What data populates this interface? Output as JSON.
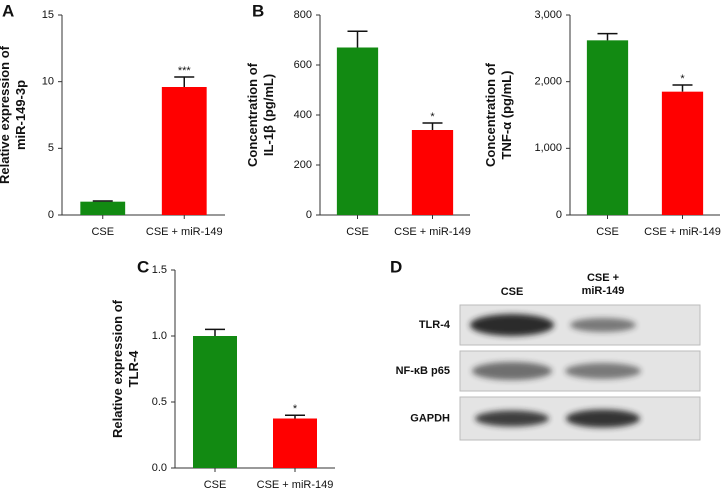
{
  "chart_data": [
    {
      "type": "bar",
      "panel": "A",
      "ylabel": [
        "Relative expression of",
        "miR-149-3p"
      ],
      "categories": [
        "CSE",
        "CSE + miR-149"
      ],
      "values": [
        1.0,
        9.6
      ],
      "errors": [
        0.05,
        0.75
      ],
      "colors": [
        "#128a12",
        "#ff0000"
      ],
      "value_annotations": [
        null,
        "***"
      ],
      "ylim": [
        0,
        15
      ],
      "yticks": [
        0,
        5,
        10,
        15
      ]
    },
    {
      "type": "bar",
      "panel": "B",
      "ylabel": [
        "Concentration of",
        "IL-1β (pg/mL)"
      ],
      "categories": [
        "CSE",
        "CSE + miR-149"
      ],
      "values": [
        670,
        340
      ],
      "errors": [
        65,
        28
      ],
      "colors": [
        "#128a12",
        "#ff0000"
      ],
      "value_annotations": [
        null,
        "*"
      ],
      "ylim": [
        0,
        800
      ],
      "yticks": [
        0,
        200,
        400,
        600,
        800
      ]
    },
    {
      "type": "bar",
      "ylabel": [
        "Concentration of",
        "TNF-α (pg/mL)"
      ],
      "categories": [
        "CSE",
        "CSE + miR-149"
      ],
      "values": [
        2620,
        1850
      ],
      "errors": [
        100,
        100
      ],
      "colors": [
        "#128a12",
        "#ff0000"
      ],
      "value_annotations": [
        null,
        "*"
      ],
      "ylim": [
        0,
        3000
      ],
      "yticks": [
        0,
        {
          "value": 1000,
          "label": "1,000"
        },
        {
          "value": 2000,
          "label": "2,000"
        },
        {
          "value": 3000,
          "label": "3,000"
        }
      ]
    },
    {
      "type": "bar",
      "panel": "C",
      "ylabel": [
        "Relative expression of",
        "TLR-4"
      ],
      "categories": [
        "CSE",
        "CSE + miR-149"
      ],
      "values": [
        1.0,
        0.375
      ],
      "errors": [
        0.05,
        0.025
      ],
      "colors": [
        "#128a12",
        "#ff0000"
      ],
      "value_annotations": [
        null,
        "*"
      ],
      "ylim": [
        0,
        1.5
      ],
      "yticks": [
        {
          "value": 0,
          "label": "0.0"
        },
        0.5,
        {
          "value": 1,
          "label": "1.0"
        },
        1.5
      ]
    }
  ],
  "blot": {
    "panel": "D",
    "columns": [
      [
        "CSE"
      ],
      [
        "CSE +",
        "miR-149"
      ]
    ],
    "rows": [
      "TLR-4",
      "NF-κB p65",
      "GAPDH"
    ]
  }
}
